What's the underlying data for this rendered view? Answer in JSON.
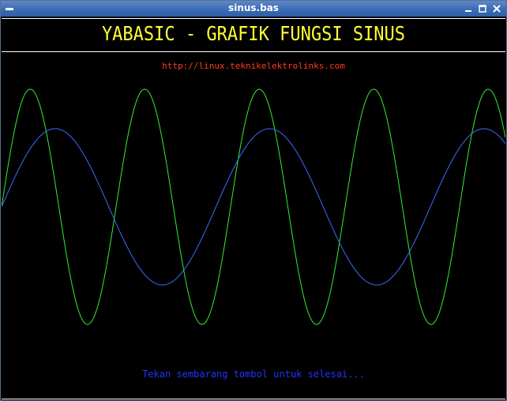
{
  "window": {
    "title": "sinus.bas",
    "buttons": [
      "minimize",
      "maximize",
      "close"
    ]
  },
  "canvas": {
    "heading": "YABASIC - GRAFIK FUNGSI SINUS",
    "url": "http://linux.teknikelektrolinks.com",
    "footer": "Tekan sembarang tombol untuk selesai..."
  },
  "colors": {
    "background": "#000000",
    "heading": "#ffff33",
    "url": "#ff3b1f",
    "footer": "#2233ff",
    "green_curve": "#33ee33",
    "blue_curve": "#3a6cff"
  },
  "curves": [
    {
      "name": "green",
      "periods_visible": 4.4,
      "phase_deg": 0
    },
    {
      "name": "blue",
      "periods_visible": 2.35,
      "phase_deg": 0
    }
  ]
}
